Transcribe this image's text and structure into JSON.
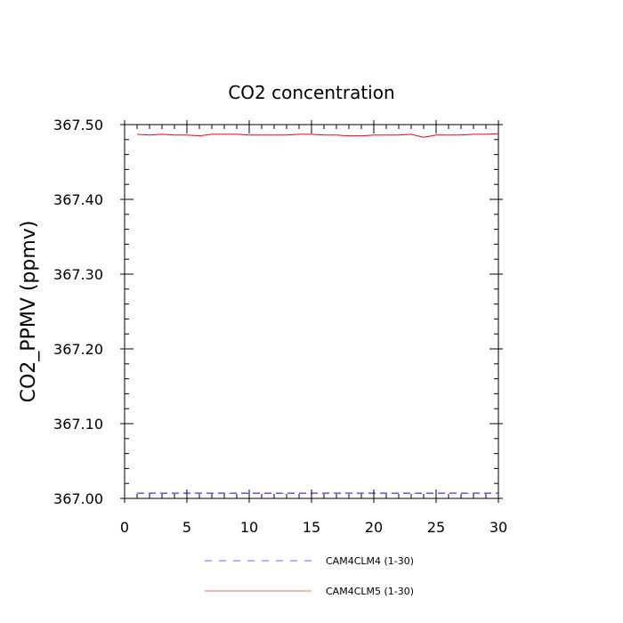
{
  "chart_data": {
    "type": "line",
    "title": "CO2 concentration",
    "xlabel": "",
    "ylabel": "CO2_PPMV  (ppmv)",
    "xlim": [
      0,
      30
    ],
    "ylim": [
      367.0,
      367.5
    ],
    "xticks": [
      0,
      5,
      10,
      15,
      20,
      25,
      30
    ],
    "xtick_labels": [
      "0",
      "5",
      "10",
      "15",
      "20",
      "25",
      "30"
    ],
    "yticks": [
      367.0,
      367.1,
      367.2,
      367.3,
      367.4,
      367.5
    ],
    "ytick_labels": [
      "367.00",
      "367.10",
      "367.20",
      "367.30",
      "367.40",
      "367.50"
    ],
    "grid": false,
    "legend_position": "bottom",
    "x": [
      1,
      2,
      3,
      4,
      5,
      6,
      7,
      8,
      9,
      10,
      11,
      12,
      13,
      14,
      15,
      16,
      17,
      18,
      19,
      20,
      21,
      22,
      23,
      24,
      25,
      26,
      27,
      28,
      29,
      30
    ],
    "series": [
      {
        "name": "CAM4CLM4 (1-30)",
        "color": "#0000ff",
        "dash": "dashed",
        "values": [
          367.007,
          367.007,
          367.007,
          367.007,
          367.007,
          367.007,
          367.007,
          367.007,
          367.007,
          367.007,
          367.007,
          367.007,
          367.007,
          367.007,
          367.007,
          367.007,
          367.007,
          367.007,
          367.007,
          367.007,
          367.007,
          367.007,
          367.007,
          367.007,
          367.007,
          367.007,
          367.007,
          367.007,
          367.007,
          367.007
        ]
      },
      {
        "name": "CAM4CLM5 (1-30)",
        "color": "#ff0000",
        "dash": "solid",
        "values": [
          367.487,
          367.486,
          367.487,
          367.486,
          367.486,
          367.485,
          367.487,
          367.487,
          367.487,
          367.486,
          367.486,
          367.486,
          367.486,
          367.487,
          367.487,
          367.486,
          367.486,
          367.485,
          367.485,
          367.486,
          367.486,
          367.486,
          367.487,
          367.483,
          367.486,
          367.486,
          367.486,
          367.487,
          367.487,
          367.488
        ]
      }
    ]
  }
}
